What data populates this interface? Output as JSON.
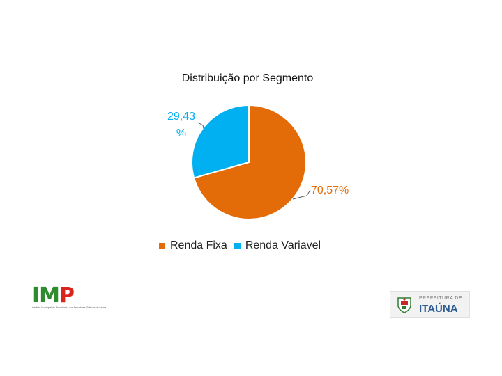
{
  "chart_data": {
    "type": "pie",
    "title": "Distribuição por Segmento",
    "slices": [
      {
        "name": "Renda Fixa",
        "value": 70.57,
        "label": "70,57%",
        "color": "#E36C09"
      },
      {
        "name": "Renda Variavel",
        "value": 29.43,
        "label": "29,43 %",
        "color": "#00B0F0"
      }
    ],
    "legend_position": "bottom"
  },
  "footer": {
    "left_logo": {
      "text": "IMP",
      "subtitle": "Instituto Municipal de Previdência dos Servidores Públicos de Itaúna"
    },
    "right_logo": {
      "line1": "PREFEITURA DE",
      "line2": "ITAÚNA"
    }
  }
}
